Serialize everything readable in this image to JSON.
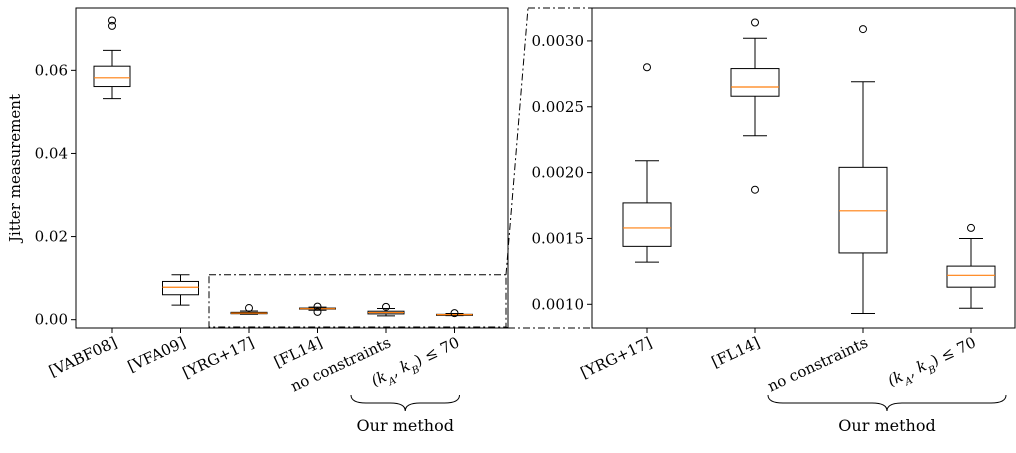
{
  "chart_data": [
    {
      "type": "box",
      "ylabel": "Jitter measurement",
      "ylim": [
        -0.002,
        0.075
      ],
      "yticks": [
        0.0,
        0.02,
        0.04,
        0.06
      ],
      "ytick_labels": [
        "0.00",
        "0.02",
        "0.04",
        "0.06"
      ],
      "categories": [
        "[VABF08]",
        "[VFA09]",
        "[YRG+17]",
        "[FL14]",
        "no constraints",
        "(k_A, k_B) ≤ 70"
      ],
      "boxes": [
        {
          "category": "[VABF08]",
          "whislo": 0.0532,
          "q1": 0.0561,
          "median": 0.0582,
          "q3": 0.061,
          "whishi": 0.0648,
          "fliers": [
            0.0707,
            0.072
          ]
        },
        {
          "category": "[VFA09]",
          "whislo": 0.0035,
          "q1": 0.006,
          "median": 0.0078,
          "q3": 0.0092,
          "whishi": 0.0108,
          "fliers": []
        },
        {
          "category": "[YRG+17]",
          "whislo": 0.00132,
          "q1": 0.00144,
          "median": 0.00158,
          "q3": 0.00177,
          "whishi": 0.00209,
          "fliers": [
            0.0028
          ]
        },
        {
          "category": "[FL14]",
          "whislo": 0.00228,
          "q1": 0.00258,
          "median": 0.00265,
          "q3": 0.00279,
          "whishi": 0.00302,
          "fliers": [
            0.00187,
            0.00314
          ]
        },
        {
          "category": "no constraints",
          "whislo": 0.00093,
          "q1": 0.00139,
          "median": 0.00171,
          "q3": 0.00204,
          "whishi": 0.00269,
          "fliers": [
            0.00309
          ]
        },
        {
          "category": "(k_A, k_B) ≤ 70",
          "whislo": 0.00097,
          "q1": 0.00113,
          "median": 0.00122,
          "q3": 0.00129,
          "whishi": 0.0015,
          "fliers": [
            0.00158
          ]
        }
      ],
      "group_label": "Our method"
    },
    {
      "type": "box",
      "ylim": [
        0.00082,
        0.00325
      ],
      "yticks": [
        0.001,
        0.0015,
        0.002,
        0.0025,
        0.003
      ],
      "ytick_labels": [
        "0.0010",
        "0.0015",
        "0.0020",
        "0.0025",
        "0.0030"
      ],
      "categories": [
        "[YRG+17]",
        "[FL14]",
        "no constraints",
        "(k_A, k_B) ≤ 70"
      ],
      "boxes": [
        {
          "category": "[YRG+17]",
          "whislo": 0.00132,
          "q1": 0.00144,
          "median": 0.00158,
          "q3": 0.00177,
          "whishi": 0.00209,
          "fliers": [
            0.0028
          ]
        },
        {
          "category": "[FL14]",
          "whislo": 0.00228,
          "q1": 0.00258,
          "median": 0.00265,
          "q3": 0.00279,
          "whishi": 0.00302,
          "fliers": [
            0.00187,
            0.00314
          ]
        },
        {
          "category": "no constraints",
          "whislo": 0.00093,
          "q1": 0.00139,
          "median": 0.00171,
          "q3": 0.00204,
          "whishi": 0.00269,
          "fliers": [
            0.00309
          ]
        },
        {
          "category": "(k_A, k_B) ≤ 70",
          "whislo": 0.00097,
          "q1": 0.00113,
          "median": 0.00122,
          "q3": 0.00129,
          "whishi": 0.0015,
          "fliers": [
            0.00158
          ]
        }
      ],
      "group_label": "Our method"
    }
  ],
  "colors": {
    "box": "#000000",
    "median": "#ff7f0e",
    "background": "#ffffff"
  }
}
